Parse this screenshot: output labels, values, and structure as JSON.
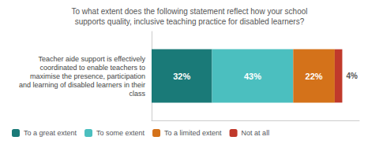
{
  "chart_data": {
    "type": "bar",
    "orientation": "horizontal",
    "stacked": true,
    "title": "To what extent does the following statement reflect how your school\nsupports quality, inclusive teaching practice for disabled learners?",
    "categories": [
      "Teacher aide support is effectively\ncoordinated to enable teachers to\nmaximise the presence, participation\nand learning of disabled learners in their\nclass"
    ],
    "series": [
      {
        "name": "To a great extent",
        "color": "#1a7a78",
        "values": [
          32
        ],
        "value_labels": [
          "32%"
        ]
      },
      {
        "name": "To some extent",
        "color": "#4bbfbf",
        "values": [
          43
        ],
        "value_labels": [
          "43%"
        ]
      },
      {
        "name": "To a limited extent",
        "color": "#d4721a",
        "values": [
          22
        ],
        "value_labels": [
          "22%"
        ]
      },
      {
        "name": "Not at all",
        "color": "#c0392b",
        "values": [
          4
        ],
        "value_labels": [
          "4%"
        ]
      }
    ],
    "xlim": [
      0,
      110
    ],
    "data_labels": true,
    "tick_labels": false,
    "grid": false,
    "legend": "lower left"
  }
}
